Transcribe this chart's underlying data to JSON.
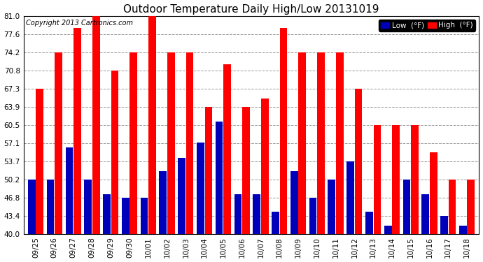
{
  "title": "Outdoor Temperature Daily High/Low 20131019",
  "copyright": "Copyright 2013 Cartronics.com",
  "legend_low": "Low  (°F)",
  "legend_high": "High  (°F)",
  "categories": [
    "09/25",
    "09/26",
    "09/27",
    "09/28",
    "09/29",
    "09/30",
    "10/01",
    "10/02",
    "10/03",
    "10/04",
    "10/05",
    "10/06",
    "10/07",
    "10/08",
    "10/09",
    "10/10",
    "10/11",
    "10/12",
    "10/13",
    "10/14",
    "10/15",
    "10/16",
    "10/17",
    "10/18"
  ],
  "highs": [
    67.3,
    74.2,
    78.8,
    81.0,
    70.8,
    74.2,
    81.0,
    74.2,
    74.2,
    63.9,
    72.0,
    63.9,
    65.5,
    78.8,
    74.2,
    74.2,
    74.2,
    67.3,
    60.5,
    60.5,
    60.5,
    55.4,
    50.2,
    50.2
  ],
  "lows": [
    50.2,
    50.2,
    56.3,
    50.2,
    47.5,
    46.8,
    46.8,
    51.8,
    54.3,
    57.2,
    61.2,
    47.5,
    47.5,
    44.2,
    51.8,
    46.8,
    50.2,
    53.7,
    44.2,
    41.5,
    50.2,
    47.5,
    43.4,
    41.5
  ],
  "ylim_min": 40.0,
  "ylim_max": 81.0,
  "yticks": [
    40.0,
    43.4,
    46.8,
    50.2,
    53.7,
    57.1,
    60.5,
    63.9,
    67.3,
    70.8,
    74.2,
    77.6,
    81.0
  ],
  "bar_color_high": "#ff0000",
  "bar_color_low": "#0000bb",
  "bg_color": "#ffffff",
  "grid_color": "#999999",
  "title_fontsize": 11,
  "tick_fontsize": 7.5,
  "copyright_fontsize": 7
}
